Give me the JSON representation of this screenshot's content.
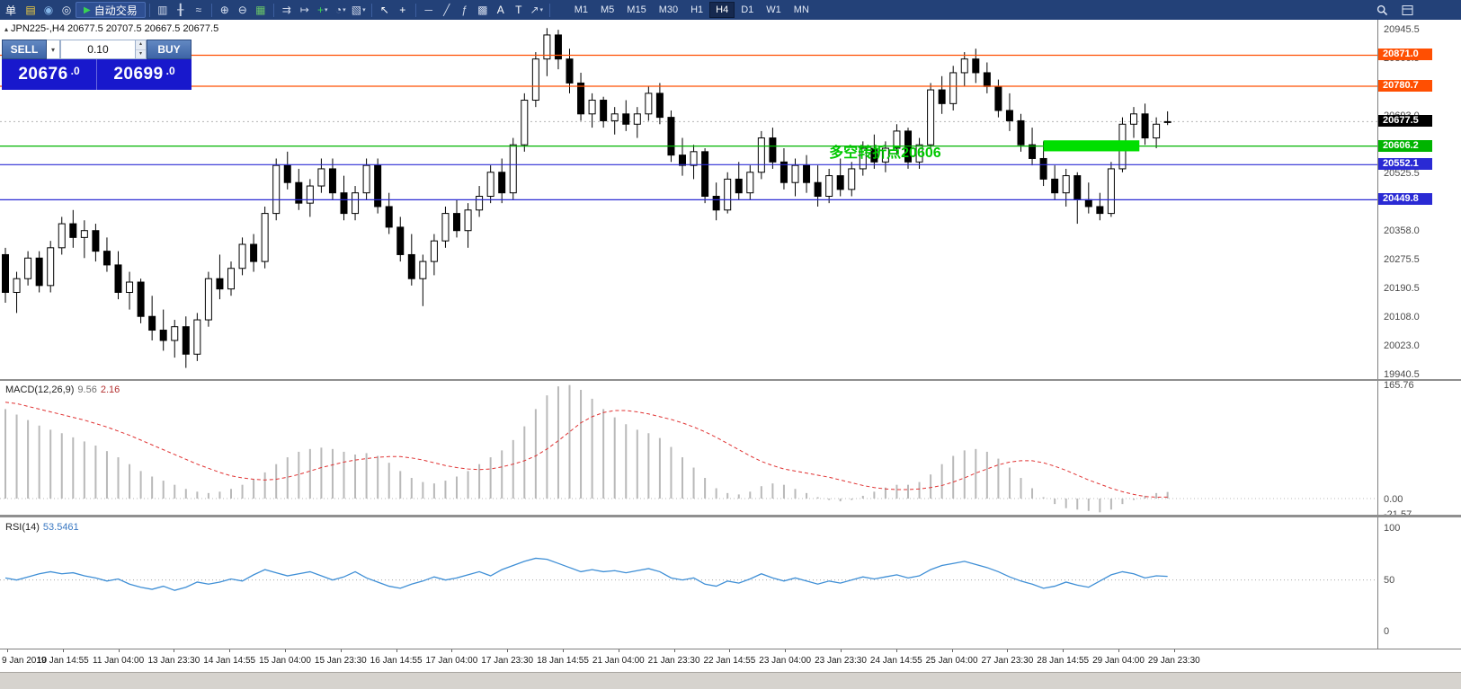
{
  "toolbar": {
    "menu_text": "单",
    "auto_trading_label": "自动交易",
    "timeframes": [
      "M1",
      "M5",
      "M15",
      "M30",
      "H1",
      "H4",
      "D1",
      "W1",
      "MN"
    ],
    "active_timeframe": "H4",
    "items": [
      {
        "name": "new-order-icon",
        "glyph": "▤",
        "color": "#f4d03f"
      },
      {
        "name": "profile-icon",
        "glyph": "◉",
        "color": "#85b6e8"
      },
      {
        "name": "help-icon",
        "glyph": "◎",
        "color": "#e8eef8"
      },
      {
        "name": "auto-trading-button",
        "type": "button",
        "label": "自动交易",
        "icon_glyph": "▶",
        "icon_color": "#39d353"
      },
      {
        "type": "sep"
      },
      {
        "name": "bar-chart-icon",
        "glyph": "▥",
        "color": "#cfd8ea"
      },
      {
        "name": "candlestick-chart-icon",
        "glyph": "╂",
        "color": "#cfd8ea"
      },
      {
        "name": "line-chart-icon",
        "glyph": "≈",
        "color": "#cfd8ea"
      },
      {
        "type": "sep"
      },
      {
        "name": "zoom-in-icon",
        "glyph": "⊕",
        "color": "#dbe4f4"
      },
      {
        "name": "zoom-out-icon",
        "glyph": "⊖",
        "color": "#dbe4f4"
      },
      {
        "name": "tile-windows-icon",
        "glyph": "▦",
        "color": "#69c569"
      },
      {
        "type": "sep"
      },
      {
        "name": "auto-scroll-icon",
        "glyph": "⇉",
        "color": "#cfd8ea"
      },
      {
        "name": "chart-shift-icon",
        "glyph": "↦",
        "color": "#cfd8ea"
      },
      {
        "name": "indicators-icon",
        "glyph": "+",
        "color": "#39d353",
        "dropdown": true
      },
      {
        "name": "periods-icon",
        "glyph": "◔",
        "color": "#cfd8ea",
        "dropdown": true
      },
      {
        "name": "templates-icon",
        "glyph": "▧",
        "color": "#cfd8ea",
        "dropdown": true
      },
      {
        "type": "sep"
      },
      {
        "name": "cursor-icon",
        "glyph": "↖",
        "color": "#ffffff"
      },
      {
        "name": "crosshair-icon",
        "glyph": "+",
        "color": "#ffffff"
      },
      {
        "type": "sep"
      },
      {
        "name": "horizontal-line-tool-icon",
        "glyph": "─",
        "color": "#cfd8ea"
      },
      {
        "name": "trendline-tool-icon",
        "glyph": "╱",
        "color": "#cfd8ea"
      },
      {
        "name": "fibonacci-tool-icon",
        "glyph": "ƒ",
        "color": "#cfd8ea"
      },
      {
        "name": "grid-tool-icon",
        "glyph": "▩",
        "color": "#cfd8ea"
      },
      {
        "name": "text-tool-icon",
        "glyph": "A",
        "color": "#ffffff"
      },
      {
        "name": "label-tool-icon",
        "glyph": "T",
        "color": "#ffffff"
      },
      {
        "name": "arrows-tool-icon",
        "glyph": "↗",
        "color": "#cfd8ea",
        "dropdown": true
      },
      {
        "type": "sep"
      }
    ]
  },
  "chart": {
    "header_marker": "▴",
    "header_text": "JPN225-,H4  20677.5 20707.5 20667.5 20677.5"
  },
  "trade_panel": {
    "sell_label": "SELL",
    "buy_label": "BUY",
    "lot_value": "0.10",
    "sell_price": "20676",
    "sell_price_frac": ".0",
    "buy_price": "20699",
    "buy_price_frac": ".0",
    "panel_color": "#1818cc"
  },
  "chart_data": {
    "type": "candlestick",
    "symbol": "JPN225-",
    "timeframe": "H4",
    "current_price": 20677.5,
    "price_axis": {
      "top": 20945.5,
      "bottom": 19940.5,
      "ticks": [
        20945.5,
        20860.5,
        20778.0,
        20693.0,
        20610.5,
        20525.5,
        20443.0,
        20358.0,
        20275.5,
        20190.5,
        20108.0,
        20023.0,
        19940.5
      ]
    },
    "hlines": [
      {
        "price": 20871.0,
        "color": "#ff4f02"
      },
      {
        "price": 20780.7,
        "color": "#ff4f02"
      },
      {
        "price": 20606.2,
        "color": "#00b400"
      },
      {
        "price": 20552.1,
        "color": "#2a2ad4"
      },
      {
        "price": 20449.8,
        "color": "#2a2ad4"
      }
    ],
    "highlight_rect": {
      "bar_start": 92,
      "bar_end": 100.5,
      "price_top": 20623,
      "price_bottom": 20591,
      "color": "#00df00"
    },
    "annotation": {
      "text": "多空转折点20606",
      "color": "#00c800",
      "bar": 73,
      "price": 20583
    },
    "candles": [
      [
        20290,
        20310,
        20150,
        20180
      ],
      [
        20180,
        20240,
        20120,
        20220
      ],
      [
        20220,
        20300,
        20200,
        20280
      ],
      [
        20280,
        20300,
        20180,
        20200
      ],
      [
        20200,
        20330,
        20180,
        20310
      ],
      [
        20310,
        20400,
        20290,
        20380
      ],
      [
        20380,
        20420,
        20310,
        20340
      ],
      [
        20340,
        20390,
        20280,
        20360
      ],
      [
        20360,
        20380,
        20270,
        20300
      ],
      [
        20300,
        20340,
        20240,
        20260
      ],
      [
        20260,
        20300,
        20160,
        20180
      ],
      [
        20180,
        20240,
        20130,
        20210
      ],
      [
        20210,
        20220,
        20090,
        20110
      ],
      [
        20110,
        20170,
        20040,
        20070
      ],
      [
        20070,
        20130,
        20010,
        20040
      ],
      [
        20040,
        20100,
        19990,
        20080
      ],
      [
        20080,
        20110,
        19960,
        20000
      ],
      [
        20000,
        20120,
        19980,
        20100
      ],
      [
        20100,
        20240,
        20080,
        20220
      ],
      [
        20220,
        20290,
        20160,
        20190
      ],
      [
        20190,
        20270,
        20170,
        20250
      ],
      [
        20250,
        20340,
        20230,
        20320
      ],
      [
        20320,
        20350,
        20240,
        20270
      ],
      [
        20270,
        20430,
        20250,
        20410
      ],
      [
        20410,
        20570,
        20390,
        20550
      ],
      [
        20550,
        20590,
        20480,
        20500
      ],
      [
        20500,
        20540,
        20420,
        20440
      ],
      [
        20440,
        20510,
        20400,
        20490
      ],
      [
        20490,
        20570,
        20470,
        20540
      ],
      [
        20540,
        20570,
        20450,
        20470
      ],
      [
        20470,
        20520,
        20390,
        20410
      ],
      [
        20410,
        20490,
        20390,
        20470
      ],
      [
        20470,
        20570,
        20450,
        20550
      ],
      [
        20550,
        20570,
        20410,
        20430
      ],
      [
        20430,
        20470,
        20350,
        20370
      ],
      [
        20370,
        20400,
        20270,
        20290
      ],
      [
        20290,
        20350,
        20200,
        20220
      ],
      [
        20220,
        20290,
        20140,
        20270
      ],
      [
        20270,
        20350,
        20230,
        20330
      ],
      [
        20330,
        20430,
        20310,
        20410
      ],
      [
        20410,
        20450,
        20340,
        20360
      ],
      [
        20360,
        20440,
        20310,
        20420
      ],
      [
        20420,
        20490,
        20400,
        20460
      ],
      [
        20460,
        20550,
        20440,
        20530
      ],
      [
        20530,
        20570,
        20440,
        20470
      ],
      [
        20470,
        20630,
        20450,
        20610
      ],
      [
        20610,
        20760,
        20590,
        20740
      ],
      [
        20740,
        20880,
        20720,
        20860
      ],
      [
        20860,
        20950,
        20810,
        20930
      ],
      [
        20930,
        20945,
        20830,
        20860
      ],
      [
        20860,
        20890,
        20760,
        20790
      ],
      [
        20790,
        20820,
        20680,
        20700
      ],
      [
        20700,
        20760,
        20660,
        20740
      ],
      [
        20740,
        20750,
        20660,
        20680
      ],
      [
        20680,
        20720,
        20640,
        20700
      ],
      [
        20700,
        20740,
        20650,
        20670
      ],
      [
        20670,
        20720,
        20630,
        20700
      ],
      [
        20700,
        20780,
        20680,
        20760
      ],
      [
        20760,
        20790,
        20670,
        20690
      ],
      [
        20690,
        20710,
        20560,
        20580
      ],
      [
        20580,
        20630,
        20520,
        20550
      ],
      [
        20550,
        20610,
        20510,
        20590
      ],
      [
        20590,
        20600,
        20440,
        20460
      ],
      [
        20460,
        20500,
        20390,
        20420
      ],
      [
        20420,
        20530,
        20410,
        20510
      ],
      [
        20510,
        20560,
        20450,
        20470
      ],
      [
        20470,
        20550,
        20450,
        20530
      ],
      [
        20530,
        20650,
        20510,
        20630
      ],
      [
        20630,
        20660,
        20540,
        20560
      ],
      [
        20560,
        20600,
        20480,
        20500
      ],
      [
        20500,
        20570,
        20460,
        20550
      ],
      [
        20550,
        20580,
        20470,
        20500
      ],
      [
        20500,
        20550,
        20430,
        20460
      ],
      [
        20460,
        20540,
        20440,
        20520
      ],
      [
        20520,
        20570,
        20460,
        20480
      ],
      [
        20480,
        20560,
        20460,
        20540
      ],
      [
        20540,
        20620,
        20520,
        20600
      ],
      [
        20600,
        20640,
        20540,
        20560
      ],
      [
        20560,
        20620,
        20530,
        20600
      ],
      [
        20600,
        20670,
        20580,
        20650
      ],
      [
        20650,
        20660,
        20540,
        20560
      ],
      [
        20560,
        20630,
        20540,
        20610
      ],
      [
        20610,
        20790,
        20600,
        20770
      ],
      [
        20770,
        20810,
        20700,
        20730
      ],
      [
        20730,
        20840,
        20710,
        20820
      ],
      [
        20820,
        20880,
        20780,
        20860
      ],
      [
        20860,
        20890,
        20790,
        20820
      ],
      [
        20820,
        20850,
        20760,
        20780
      ],
      [
        20780,
        20800,
        20690,
        20710
      ],
      [
        20710,
        20760,
        20650,
        20680
      ],
      [
        20680,
        20700,
        20590,
        20610
      ],
      [
        20610,
        20660,
        20550,
        20570
      ],
      [
        20570,
        20620,
        20490,
        20510
      ],
      [
        20510,
        20550,
        20450,
        20470
      ],
      [
        20470,
        20540,
        20430,
        20520
      ],
      [
        20520,
        20530,
        20380,
        20450
      ],
      [
        20450,
        20500,
        20410,
        20430
      ],
      [
        20430,
        20470,
        20390,
        20410
      ],
      [
        20410,
        20560,
        20400,
        20540
      ],
      [
        20540,
        20690,
        20530,
        20670
      ],
      [
        20670,
        20720,
        20630,
        20700
      ],
      [
        20700,
        20730,
        20610,
        20630
      ],
      [
        20630,
        20690,
        20600,
        20670
      ],
      [
        20677.5,
        20707.5,
        20667.5,
        20677.5
      ]
    ],
    "macd": {
      "label": "MACD(12,26,9)",
      "value_main": "9.56",
      "value_signal": "2.16",
      "axis": [
        "165.76",
        "0.00",
        "-21.57"
      ],
      "hist": [
        130,
        122,
        114,
        106,
        100,
        95,
        89,
        83,
        77,
        69,
        60,
        50,
        40,
        32,
        26,
        20,
        14,
        10,
        8,
        10,
        14,
        20,
        28,
        38,
        50,
        60,
        68,
        72,
        74,
        72,
        68,
        64,
        66,
        62,
        52,
        40,
        30,
        24,
        22,
        26,
        32,
        40,
        50,
        60,
        70,
        85,
        105,
        130,
        150,
        163,
        165,
        158,
        145,
        130,
        118,
        108,
        100,
        95,
        88,
        75,
        60,
        45,
        30,
        15,
        8,
        6,
        10,
        18,
        22,
        20,
        14,
        8,
        2,
        -2,
        -4,
        -2,
        4,
        10,
        16,
        20,
        20,
        24,
        35,
        50,
        62,
        70,
        72,
        68,
        58,
        45,
        30,
        15,
        2,
        -8,
        -14,
        -16,
        -18,
        -20,
        -16,
        -8,
        -2,
        4,
        8,
        9.56
      ],
      "signal": [
        140,
        138,
        134,
        130,
        126,
        122,
        118,
        114,
        109,
        104,
        98,
        92,
        85,
        78,
        71,
        64,
        57,
        50,
        44,
        38,
        33,
        30,
        28,
        27,
        28,
        31,
        35,
        40,
        45,
        49,
        53,
        56,
        58,
        60,
        61,
        61,
        59,
        56,
        52,
        48,
        45,
        43,
        42,
        43,
        46,
        50,
        55,
        62,
        72,
        84,
        97,
        110,
        119,
        125,
        128,
        128,
        126,
        123,
        119,
        115,
        110,
        104,
        97,
        89,
        80,
        71,
        62,
        54,
        48,
        43,
        40,
        37,
        34,
        31,
        27,
        23,
        19,
        16,
        14,
        13,
        13,
        14,
        16,
        19,
        24,
        30,
        37,
        43,
        49,
        53,
        55,
        55,
        52,
        47,
        41,
        34,
        27,
        21,
        15,
        10,
        6,
        3,
        2,
        2.16
      ]
    },
    "rsi": {
      "label": "RSI(14)",
      "value": "53.5461",
      "axis": [
        "100",
        "50",
        "0"
      ],
      "values": [
        52,
        50,
        53,
        56,
        58,
        56,
        57,
        54,
        52,
        49,
        51,
        46,
        43,
        41,
        44,
        40,
        43,
        48,
        46,
        48,
        51,
        49,
        55,
        60,
        57,
        54,
        56,
        58,
        54,
        50,
        53,
        58,
        52,
        48,
        44,
        42,
        46,
        49,
        53,
        50,
        52,
        55,
        58,
        54,
        60,
        64,
        68,
        71,
        70,
        66,
        62,
        58,
        60,
        58,
        59,
        57,
        59,
        61,
        58,
        52,
        50,
        52,
        46,
        44,
        49,
        47,
        51,
        56,
        52,
        49,
        52,
        49,
        46,
        49,
        47,
        50,
        53,
        51,
        53,
        55,
        52,
        54,
        60,
        64,
        66,
        68,
        65,
        62,
        58,
        53,
        49,
        46,
        42,
        44,
        48,
        45,
        43,
        49,
        55,
        58,
        56,
        52,
        54,
        53.5
      ]
    },
    "time_labels": [
      "9 Jan 2019",
      "10 Jan 14:55",
      "11 Jan 04:00",
      "13 Jan 23:30",
      "14 Jan 14:55",
      "15 Jan 04:00",
      "15 Jan 23:30",
      "16 Jan 14:55",
      "17 Jan 04:00",
      "17 Jan 23:30",
      "18 Jan 14:55",
      "21 Jan 04:00",
      "21 Jan 23:30",
      "22 Jan 14:55",
      "23 Jan 04:00",
      "23 Jan 23:30",
      "24 Jan 14:55",
      "25 Jan 04:00",
      "27 Jan 23:30",
      "28 Jan 14:55",
      "29 Jan 04:00",
      "29 Jan 23:30"
    ]
  }
}
